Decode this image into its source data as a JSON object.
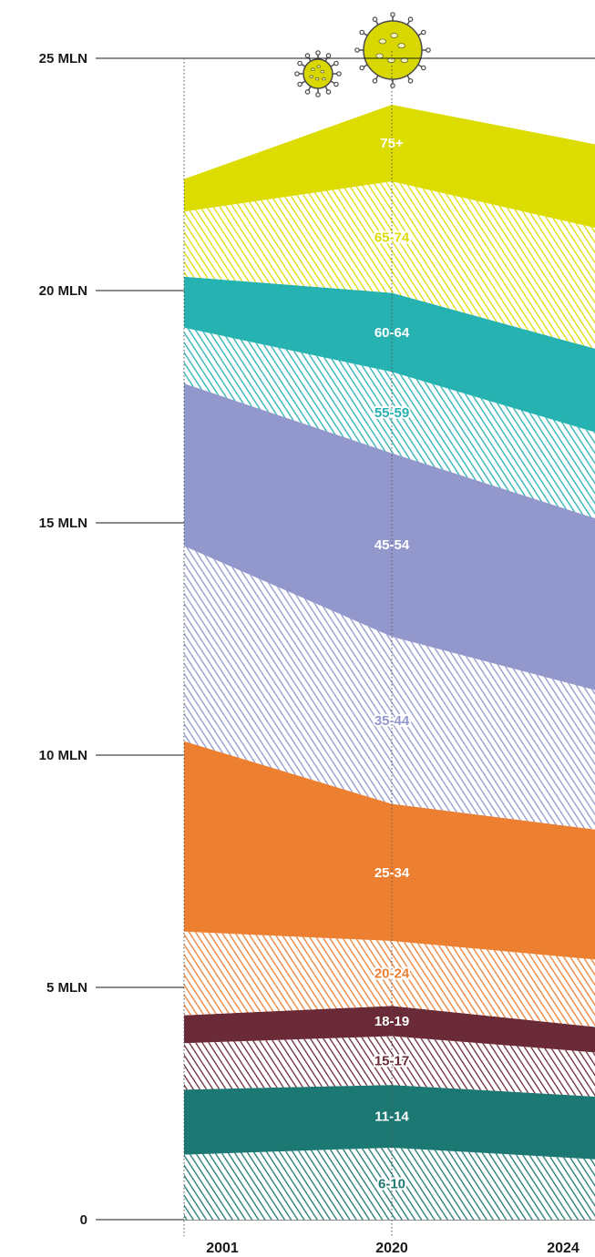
{
  "chart_data": {
    "type": "area",
    "x": [
      "2001",
      "2020",
      "2024"
    ],
    "ylim": [
      0,
      25
    ],
    "yticks": [
      {
        "value": 0,
        "label": "0"
      },
      {
        "value": 5,
        "label": "5 MLN"
      },
      {
        "value": 10,
        "label": "10 MLN"
      },
      {
        "value": 15,
        "label": "15 MLN"
      },
      {
        "value": 20,
        "label": "20 MLN"
      },
      {
        "value": 25,
        "label": "25 MLN"
      }
    ],
    "grid": true,
    "series": [
      {
        "name": "6-10",
        "values": [
          1.4,
          1.55,
          1.3
        ],
        "color": "#1c7873",
        "style": "hatched"
      },
      {
        "name": "11-14",
        "values": [
          1.4,
          1.35,
          1.35
        ],
        "color": "#1c7873",
        "style": "solid"
      },
      {
        "name": "15-17",
        "values": [
          1.0,
          1.05,
          0.95
        ],
        "color": "#6b2a38",
        "style": "hatched"
      },
      {
        "name": "18-19",
        "values": [
          0.6,
          0.65,
          0.55
        ],
        "color": "#6b2a38",
        "style": "solid"
      },
      {
        "name": "20-24",
        "values": [
          1.8,
          1.4,
          1.45
        ],
        "color": "#ed7f31",
        "style": "hatched"
      },
      {
        "name": "25-34",
        "values": [
          4.1,
          2.95,
          2.8
        ],
        "color": "#ed7f31",
        "style": "solid"
      },
      {
        "name": "35-44",
        "values": [
          4.2,
          3.6,
          3.0
        ],
        "color": "#9298cb",
        "style": "hatched"
      },
      {
        "name": "45-54",
        "values": [
          3.5,
          3.95,
          3.7
        ],
        "color": "#9298cb",
        "style": "solid"
      },
      {
        "name": "55-59",
        "values": [
          1.2,
          1.75,
          1.85
        ],
        "color": "#26b2b1",
        "style": "hatched"
      },
      {
        "name": "60-64",
        "values": [
          1.1,
          1.7,
          1.8
        ],
        "color": "#26b2b1",
        "style": "solid"
      },
      {
        "name": "65-74",
        "values": [
          1.4,
          2.4,
          2.6
        ],
        "color": "#dcdc00",
        "style": "hatched"
      },
      {
        "name": "75+",
        "values": [
          0.7,
          1.65,
          1.8
        ],
        "color": "#dcdc00",
        "style": "solid"
      }
    ]
  }
}
